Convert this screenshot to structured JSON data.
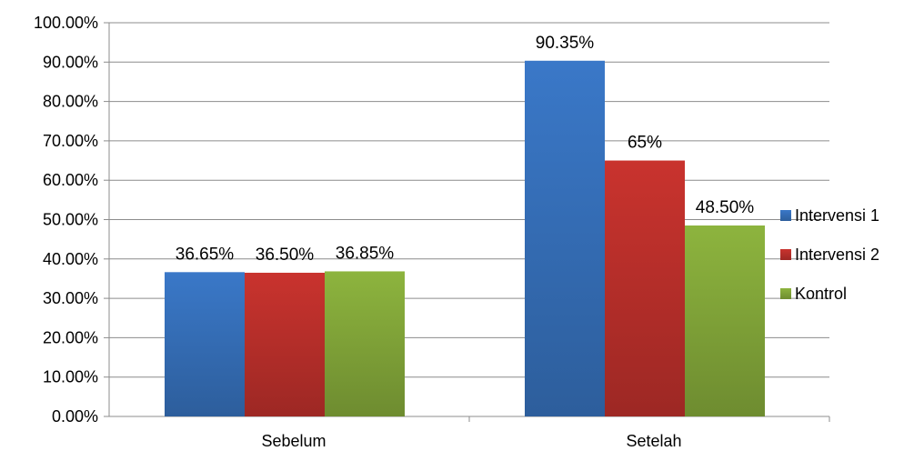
{
  "chart_data": {
    "type": "bar",
    "categories": [
      "Sebelum",
      "Setelah"
    ],
    "series": [
      {
        "name": "Intervensi 1",
        "values": [
          36.65,
          90.35
        ],
        "labels": [
          "36.65%",
          "90.35%"
        ],
        "color": "#3a78c8"
      },
      {
        "name": "Intervensi 2",
        "values": [
          36.5,
          65.0
        ],
        "labels": [
          "36.50%",
          "65%"
        ],
        "color": "#c9332e"
      },
      {
        "name": "Kontrol",
        "values": [
          36.85,
          48.5
        ],
        "labels": [
          "36.85%",
          "48.50%"
        ],
        "color": "#8db43e"
      }
    ],
    "y_ticks": [
      "0.00%",
      "10.00%",
      "20.00%",
      "30.00%",
      "40.00%",
      "50.00%",
      "60.00%",
      "70.00%",
      "80.00%",
      "90.00%",
      "100.00%"
    ],
    "ylim": [
      0,
      100
    ],
    "grid": true,
    "legend_position": "right"
  }
}
